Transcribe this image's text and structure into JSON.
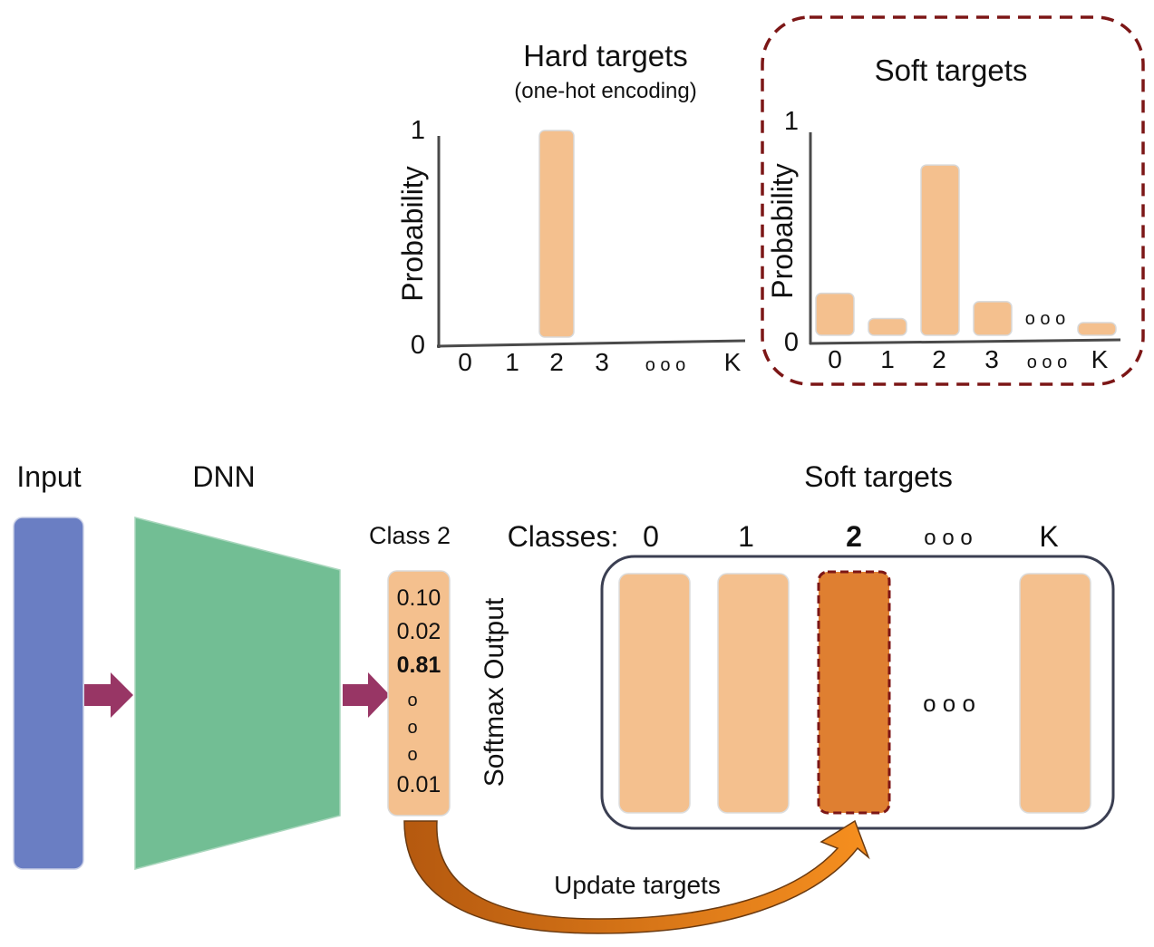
{
  "hard_chart": {
    "title": "Hard targets",
    "subtitle": "(one-hot encoding)",
    "ylabel": "Probability",
    "y_top": "1",
    "y_bottom": "0",
    "ticks": [
      "0",
      "1",
      "2",
      "3",
      "o o o",
      "K"
    ]
  },
  "soft_chart": {
    "title": "Soft targets",
    "ylabel": "Probability",
    "y_top": "1",
    "y_bottom": "0",
    "ticks": [
      "0",
      "1",
      "2",
      "3",
      "o o o",
      "K"
    ],
    "ellipsis_label": "o o o"
  },
  "chart_data": [
    {
      "type": "bar",
      "title": "Hard targets",
      "ylabel": "Probability",
      "categories": [
        "0",
        "1",
        "2",
        "3",
        "K"
      ],
      "values": [
        0,
        0,
        1.0,
        0,
        0
      ],
      "ylim": [
        0,
        1
      ]
    },
    {
      "type": "bar",
      "title": "Soft targets",
      "ylabel": "Probability",
      "categories": [
        "0",
        "1",
        "2",
        "3",
        "K"
      ],
      "values": [
        0.2,
        0.08,
        0.81,
        0.16,
        0.05
      ],
      "ylim": [
        0,
        1
      ]
    }
  ],
  "pipeline": {
    "input_label": "Input",
    "dnn_label": "DNN",
    "class_label": "Class 2",
    "softmax_values": [
      "0.10",
      "0.02",
      "0.81",
      "o",
      "o",
      "o",
      "0.01"
    ],
    "softmax_label": "Softmax Output",
    "soft_targets_title": "Soft targets",
    "classes_prefix": "Classes:",
    "class_headers": [
      "0",
      "1",
      "2",
      "o o o",
      "K"
    ],
    "ellipsis": "o o o",
    "update_label": "Update targets"
  },
  "colors": {
    "bar": "#f4c08e",
    "bar_highlight": "#df7f31",
    "input_block": "#6a7ec3",
    "dnn_block": "#72be94",
    "arrow": "#983665",
    "dashed_border": "#7c1616",
    "container_border": "#3b3f52",
    "curved_arrow": "#f08a1c"
  }
}
